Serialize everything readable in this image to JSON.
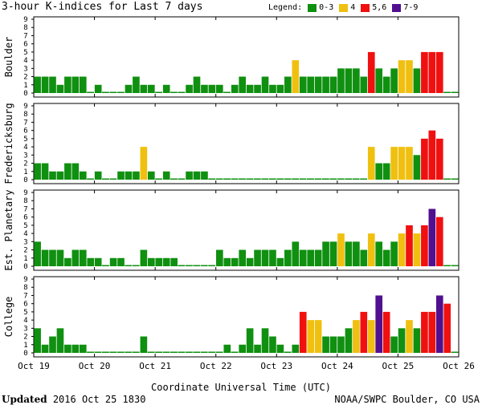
{
  "title": "3-hour K-indices for Last 7 days",
  "legend": {
    "label": "Legend:",
    "items": [
      {
        "label": "0-3",
        "color": "#109010"
      },
      {
        "label": "4",
        "color": "#f0c010"
      },
      {
        "label": "5,6",
        "color": "#f01010"
      },
      {
        "label": "7-9",
        "color": "#501090"
      }
    ]
  },
  "footer": {
    "updated_label": "Updated",
    "updated_value": "2016 Oct 25 1830",
    "credit": "NOAA/SWPC Boulder, CO USA"
  },
  "chart_data": {
    "type": "bar",
    "title": "3-hour K-indices for Last 7 days",
    "xlabel": "Coordinate Universal Time (UTC)",
    "x_ticks": [
      "Oct 19",
      "Oct 20",
      "Oct 21",
      "Oct 22",
      "Oct 23",
      "Oct 24",
      "Oct 25",
      "Oct 26"
    ],
    "ylim": [
      0,
      9
    ],
    "y_ticks": [
      0,
      1,
      2,
      3,
      4,
      5,
      6,
      7,
      8,
      9
    ],
    "bars_per_day": 8,
    "color_scale": [
      {
        "range": "0-3",
        "color": "#109010"
      },
      {
        "range": "4",
        "color": "#f0c010"
      },
      {
        "range": "5,6",
        "color": "#f01010"
      },
      {
        "range": "7-9",
        "color": "#501090"
      }
    ],
    "panels": [
      {
        "name": "Boulder",
        "values": [
          2,
          2,
          2,
          1,
          2,
          2,
          2,
          0,
          1,
          0,
          0,
          0,
          1,
          2,
          1,
          1,
          0,
          1,
          0,
          0,
          1,
          2,
          1,
          1,
          1,
          0,
          1,
          2,
          1,
          1,
          2,
          1,
          1,
          2,
          4,
          2,
          2,
          2,
          2,
          2,
          3,
          3,
          3,
          2,
          5,
          3,
          2,
          3,
          4,
          4,
          3,
          5,
          5,
          5,
          0,
          0
        ]
      },
      {
        "name": "Fredericksburg",
        "values": [
          2,
          2,
          1,
          1,
          2,
          2,
          1,
          0,
          1,
          0,
          0,
          1,
          1,
          1,
          4,
          1,
          0,
          1,
          0,
          0,
          1,
          1,
          1,
          0,
          0,
          0,
          0,
          0,
          0,
          0,
          0,
          0,
          0,
          0,
          0,
          0,
          0,
          0,
          0,
          0,
          0,
          0,
          0,
          0,
          4,
          2,
          2,
          4,
          4,
          4,
          3,
          5,
          6,
          5,
          0,
          0
        ]
      },
      {
        "name": "Est. Planetary",
        "values": [
          3,
          2,
          2,
          2,
          1,
          2,
          2,
          1,
          1,
          0,
          1,
          1,
          0,
          0,
          2,
          1,
          1,
          1,
          1,
          0,
          0,
          0,
          0,
          0,
          2,
          1,
          1,
          2,
          1,
          2,
          2,
          2,
          1,
          2,
          3,
          2,
          2,
          2,
          3,
          3,
          4,
          3,
          3,
          2,
          4,
          3,
          2,
          3,
          4,
          5,
          4,
          5,
          7,
          6,
          0,
          0
        ]
      },
      {
        "name": "College",
        "values": [
          3,
          1,
          2,
          3,
          1,
          1,
          1,
          0,
          0,
          0,
          0,
          0,
          0,
          0,
          2,
          0,
          0,
          0,
          0,
          0,
          0,
          0,
          0,
          0,
          0,
          1,
          0,
          1,
          3,
          1,
          3,
          2,
          1,
          0,
          1,
          5,
          4,
          4,
          2,
          2,
          2,
          3,
          4,
          5,
          4,
          7,
          5,
          2,
          3,
          4,
          3,
          5,
          5,
          7,
          6,
          0
        ]
      }
    ]
  }
}
